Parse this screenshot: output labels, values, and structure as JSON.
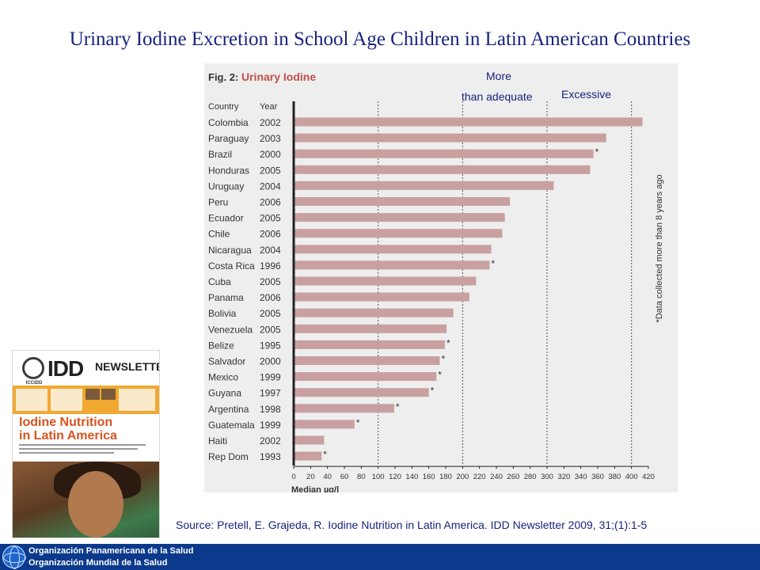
{
  "slide": {
    "title": "Urinary Iodine Excretion in School Age Children in Latin American Countries",
    "source": "Source: Pretell, E. Grajeda, R. Iodine Nutrition in Latin America. IDD Newsletter 2009, 31;(1):1-5"
  },
  "zones": {
    "more_line1": "More",
    "more_line2": "than adequate",
    "excessive": "Excessive"
  },
  "chart_data": {
    "type": "bar",
    "orientation": "horizontal",
    "figure_label": "Fig. 2:",
    "title": "Urinary Iodine",
    "col_country": "Country",
    "col_year": "Year",
    "xlabel": "Median µg/l",
    "xlim": [
      0,
      420
    ],
    "xticks": [
      0,
      20,
      40,
      60,
      80,
      100,
      120,
      140,
      160,
      180,
      200,
      220,
      240,
      260,
      280,
      300,
      320,
      340,
      360,
      380,
      400,
      420
    ],
    "reference_lines": [
      100,
      200,
      300,
      400
    ],
    "footnote": "*Data collected more than 8 years ago",
    "bar_color": "#c9a0a0",
    "grid": false,
    "rows": [
      {
        "country": "Colombia",
        "year": "2002",
        "value": 413,
        "old_data": false
      },
      {
        "country": "Paraguay",
        "year": "2003",
        "value": 370,
        "old_data": false
      },
      {
        "country": "Brazil",
        "year": "2000",
        "value": 355,
        "old_data": true
      },
      {
        "country": "Honduras",
        "year": "2005",
        "value": 351,
        "old_data": false
      },
      {
        "country": "Uruguay",
        "year": "2004",
        "value": 308,
        "old_data": false
      },
      {
        "country": "Peru",
        "year": "2006",
        "value": 256,
        "old_data": false
      },
      {
        "country": "Ecuador",
        "year": "2005",
        "value": 250,
        "old_data": false
      },
      {
        "country": "Chile",
        "year": "2006",
        "value": 247,
        "old_data": false
      },
      {
        "country": "Nicaragua",
        "year": "2004",
        "value": 234,
        "old_data": false
      },
      {
        "country": "Costa Rica",
        "year": "1996",
        "value": 232,
        "old_data": true
      },
      {
        "country": "Cuba",
        "year": "2005",
        "value": 216,
        "old_data": false
      },
      {
        "country": "Panama",
        "year": "2006",
        "value": 208,
        "old_data": false
      },
      {
        "country": "Bolivia",
        "year": "2005",
        "value": 189,
        "old_data": false
      },
      {
        "country": "Venezuela",
        "year": "2005",
        "value": 181,
        "old_data": false
      },
      {
        "country": "Belize",
        "year": "1995",
        "value": 179,
        "old_data": true
      },
      {
        "country": "Salvador",
        "year": "2000",
        "value": 173,
        "old_data": true
      },
      {
        "country": "Mexico",
        "year": "1999",
        "value": 169,
        "old_data": true
      },
      {
        "country": "Guyana",
        "year": "1997",
        "value": 160,
        "old_data": true
      },
      {
        "country": "Argentina",
        "year": "1998",
        "value": 119,
        "old_data": true
      },
      {
        "country": "Guatemala",
        "year": "1999",
        "value": 72,
        "old_data": true
      },
      {
        "country": "Haiti",
        "year": "2002",
        "value": 36,
        "old_data": false
      },
      {
        "country": "Rep Dom",
        "year": "1993",
        "value": 33,
        "old_data": true
      }
    ]
  },
  "cover": {
    "logo_text": "ICCIDD",
    "idd": "IDD",
    "newsletter": "NEWSLETTER",
    "headline_1": "Iodine Nutrition",
    "headline_2": "in Latin America"
  },
  "footer": {
    "org_1": "Organización Panamericana de la Salud",
    "org_2": "Organización Mundial de la Salud",
    "globe_icon": "paho-globe-icon"
  }
}
